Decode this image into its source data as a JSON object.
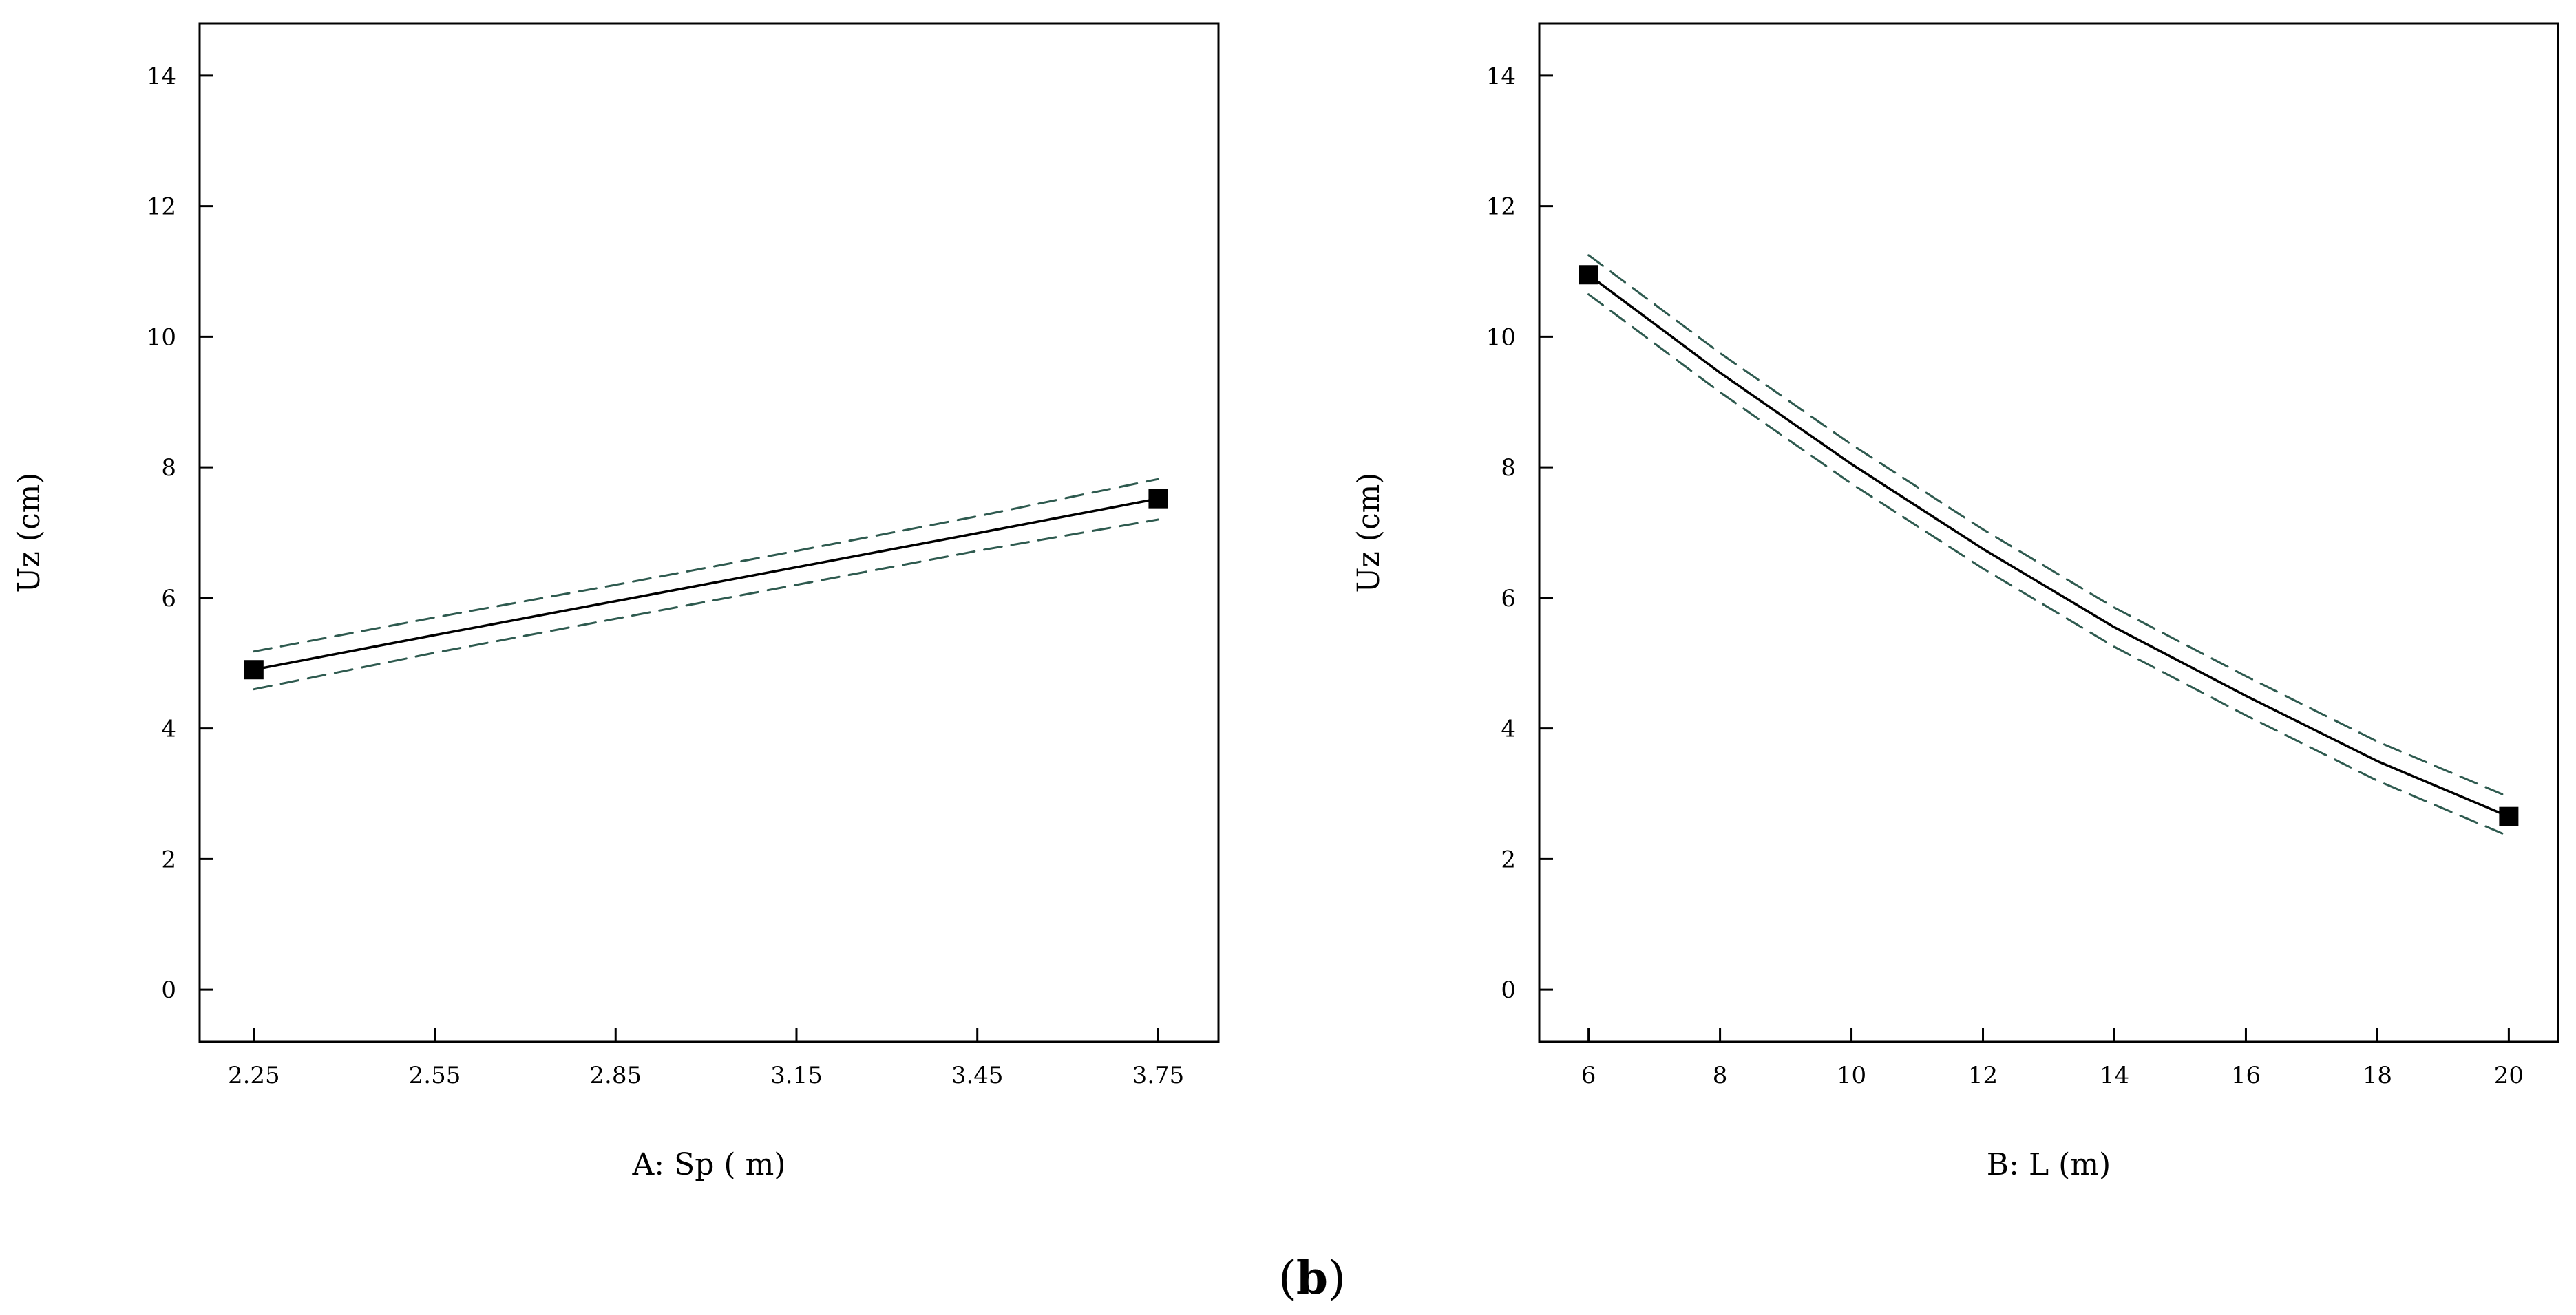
{
  "figure": {
    "caption_open": "(",
    "caption_letter": "b",
    "caption_close": ")"
  },
  "chart_data": [
    {
      "type": "line",
      "xlabel": "A: Sp ( m)",
      "ylabel": "Uz (cm)",
      "xlim": [
        2.16,
        3.85
      ],
      "ylim": [
        -0.8,
        14.8
      ],
      "x_ticks": [
        "2.25",
        "2.55",
        "2.85",
        "3.15",
        "3.45",
        "3.75"
      ],
      "y_ticks": [
        "0",
        "2",
        "4",
        "6",
        "8",
        "10",
        "12",
        "14"
      ],
      "x_tick_values": [
        2.25,
        2.55,
        2.85,
        3.15,
        3.45,
        3.75
      ],
      "y_tick_values": [
        0,
        2,
        4,
        6,
        8,
        10,
        12,
        14
      ],
      "grid": false,
      "series": [
        {
          "role": "mean",
          "style": "solid",
          "color": "#000000",
          "x": [
            2.25,
            2.55,
            2.85,
            3.15,
            3.45,
            3.75
          ],
          "y": [
            4.9,
            5.43,
            5.95,
            6.47,
            6.99,
            7.52
          ]
        },
        {
          "role": "upper",
          "style": "dashed",
          "color": "#2e5a4f",
          "x": [
            2.25,
            2.55,
            2.85,
            3.15,
            3.45,
            3.75
          ],
          "y": [
            5.18,
            5.7,
            6.2,
            6.72,
            7.25,
            7.82
          ]
        },
        {
          "role": "lower",
          "style": "dashed",
          "color": "#2e5a4f",
          "x": [
            2.25,
            2.55,
            2.85,
            3.15,
            3.45,
            3.75
          ],
          "y": [
            4.6,
            5.16,
            5.68,
            6.2,
            6.72,
            7.2
          ]
        }
      ],
      "points": {
        "x": [
          2.25,
          3.75
        ],
        "y": [
          4.9,
          7.52
        ]
      }
    },
    {
      "type": "line",
      "xlabel": "B: L (m)",
      "ylabel": "Uz (cm)",
      "xlim": [
        5.25,
        20.75
      ],
      "ylim": [
        -0.8,
        14.8
      ],
      "x_ticks": [
        "6",
        "8",
        "10",
        "12",
        "14",
        "16",
        "18",
        "20"
      ],
      "y_ticks": [
        "0",
        "2",
        "4",
        "6",
        "8",
        "10",
        "12",
        "14"
      ],
      "x_tick_values": [
        6,
        8,
        10,
        12,
        14,
        16,
        18,
        20
      ],
      "y_tick_values": [
        0,
        2,
        4,
        6,
        8,
        10,
        12,
        14
      ],
      "grid": false,
      "series": [
        {
          "role": "mean",
          "style": "solid",
          "color": "#000000",
          "x": [
            6,
            8,
            10,
            12,
            14,
            16,
            18,
            20
          ],
          "y": [
            10.95,
            9.45,
            8.05,
            6.75,
            5.55,
            4.5,
            3.5,
            2.65
          ]
        },
        {
          "role": "upper",
          "style": "dashed",
          "color": "#2e5a4f",
          "x": [
            6,
            8,
            10,
            12,
            14,
            16,
            18,
            20
          ],
          "y": [
            11.25,
            9.75,
            8.35,
            7.05,
            5.85,
            4.8,
            3.8,
            2.95
          ]
        },
        {
          "role": "lower",
          "style": "dashed",
          "color": "#2e5a4f",
          "x": [
            6,
            8,
            10,
            12,
            14,
            16,
            18,
            20
          ],
          "y": [
            10.65,
            9.15,
            7.75,
            6.45,
            5.25,
            4.2,
            3.2,
            2.35
          ]
        }
      ],
      "points": {
        "x": [
          6,
          20
        ],
        "y": [
          10.95,
          2.65
        ]
      }
    }
  ]
}
